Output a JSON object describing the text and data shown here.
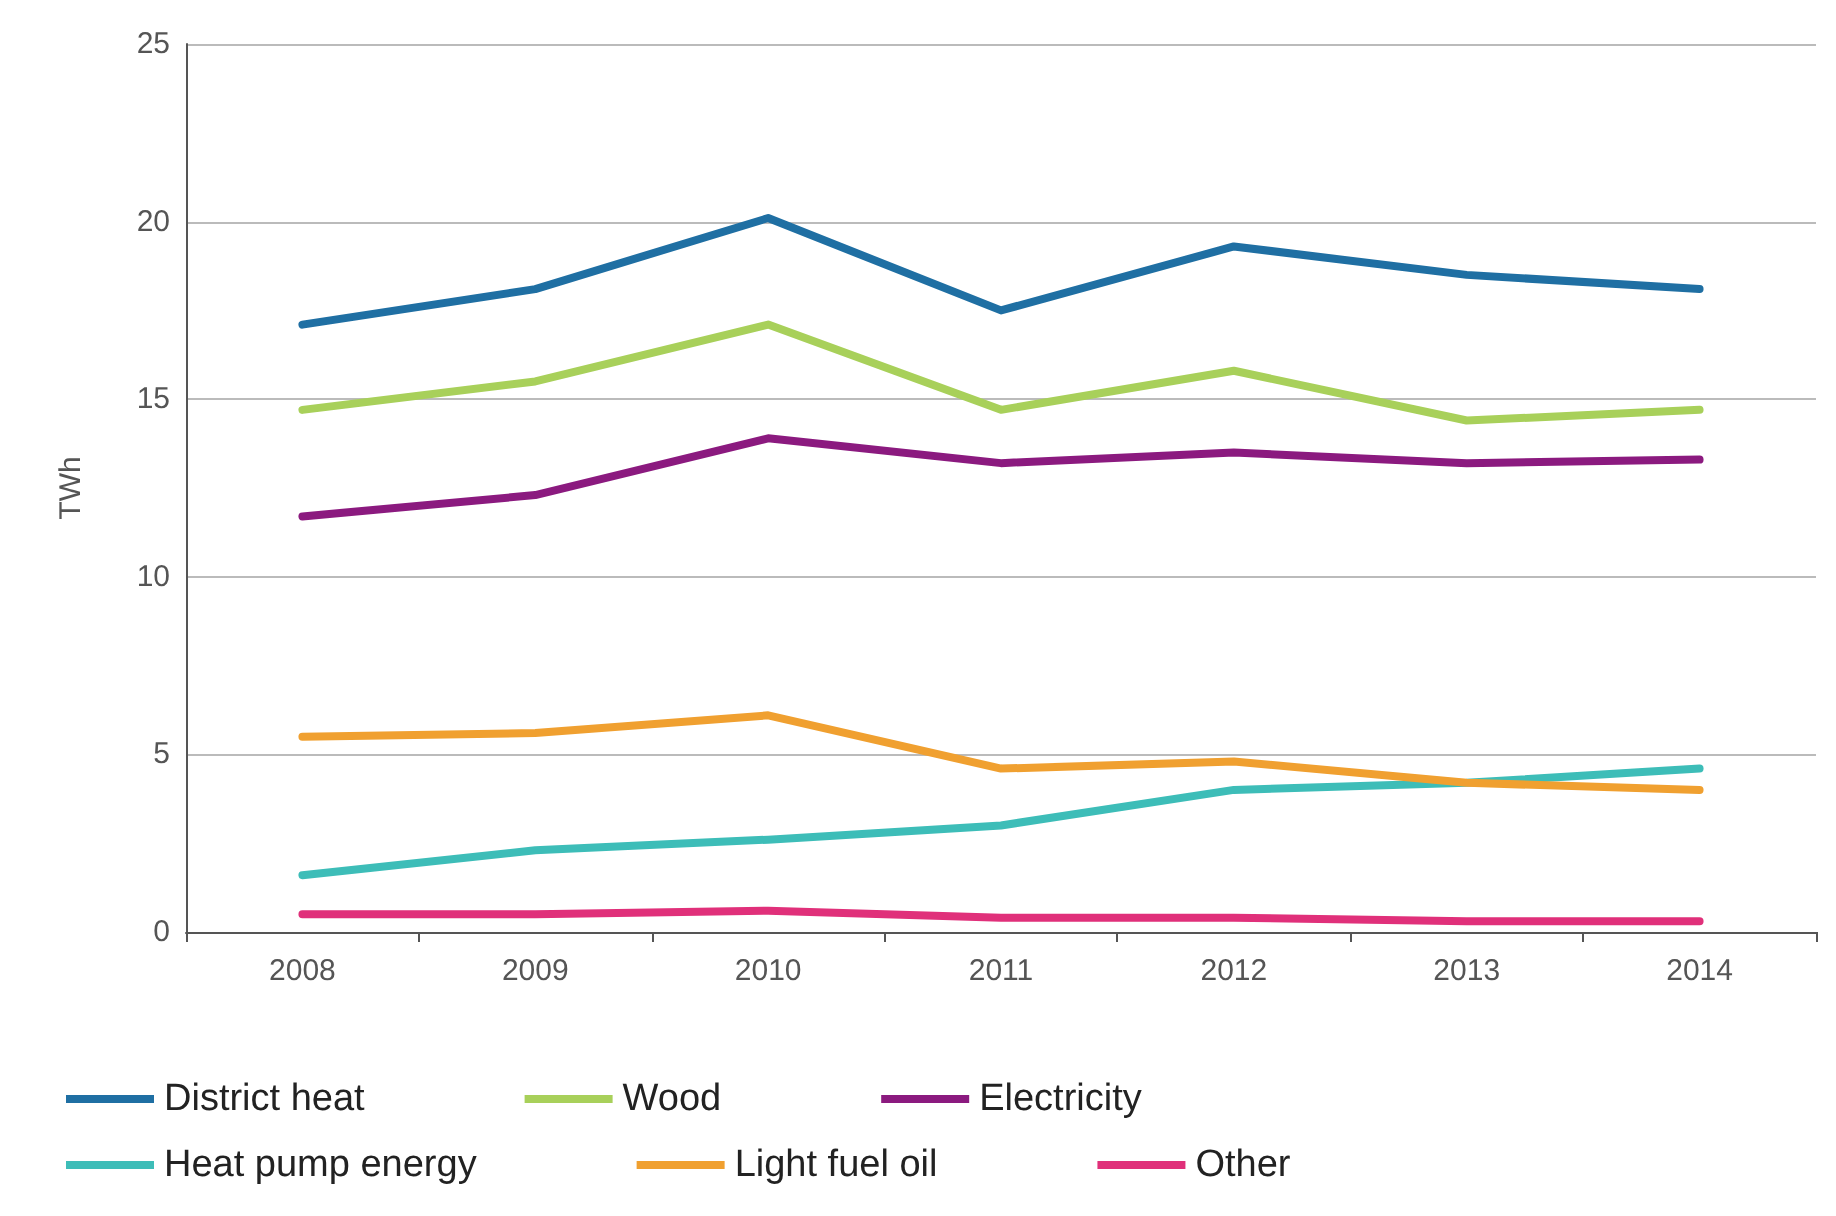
{
  "chart_data": {
    "type": "line",
    "ylabel": "TWh",
    "categories": [
      "2008",
      "2009",
      "2010",
      "2011",
      "2012",
      "2013",
      "2014"
    ],
    "series": [
      {
        "name": "District heat",
        "color": "#1f6fa3",
        "values": [
          17.1,
          18.1,
          20.1,
          17.5,
          19.3,
          18.5,
          18.1
        ]
      },
      {
        "name": "Wood",
        "color": "#a8d05a",
        "values": [
          14.7,
          15.5,
          17.1,
          14.7,
          15.8,
          14.4,
          14.7
        ]
      },
      {
        "name": "Electricity",
        "color": "#8b1a7f",
        "values": [
          11.7,
          12.3,
          13.9,
          13.2,
          13.5,
          13.2,
          13.3
        ]
      },
      {
        "name": "Heat pump energy",
        "color": "#3dbdb8",
        "values": [
          1.6,
          2.3,
          2.6,
          3.0,
          4.0,
          4.2,
          4.6
        ]
      },
      {
        "name": "Light fuel oil",
        "color": "#f0a030",
        "values": [
          5.5,
          5.6,
          6.1,
          4.6,
          4.8,
          4.2,
          4.0
        ]
      },
      {
        "name": "Other",
        "color": "#e0307a",
        "values": [
          0.5,
          0.5,
          0.6,
          0.4,
          0.4,
          0.3,
          0.3
        ]
      }
    ],
    "ylim": [
      0,
      25
    ],
    "yticks": [
      0,
      5,
      10,
      15,
      20,
      25
    ],
    "grid": "y",
    "legend": "bottom",
    "marker": "none",
    "line_style": "solid"
  }
}
